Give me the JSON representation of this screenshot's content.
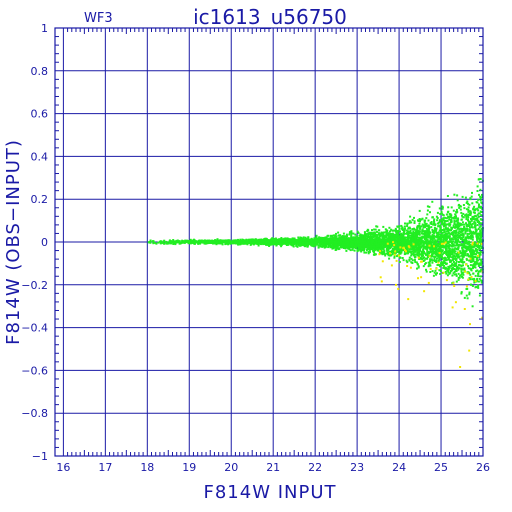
{
  "chart_data": {
    "type": "scatter",
    "title": "ic1613_u56750",
    "corner_label": "WF3",
    "xlabel": "F814W INPUT",
    "ylabel": "F814W (OBS−INPUT)",
    "xlim": [
      15.8,
      26
    ],
    "ylim": [
      -1,
      1
    ],
    "x_ticks": [
      16,
      17,
      18,
      19,
      20,
      21,
      22,
      23,
      24,
      25,
      26
    ],
    "y_ticks": [
      -1,
      -0.8,
      -0.6,
      -0.4,
      -0.2,
      0,
      0.2,
      0.4,
      0.6,
      0.8,
      1
    ],
    "x_tick_labels": [
      "16",
      "17",
      "18",
      "19",
      "20",
      "21",
      "22",
      "23",
      "24",
      "25",
      "26"
    ],
    "y_tick_labels": [
      "−1",
      "−0.8",
      "−0.6",
      "−0.4",
      "−0.2",
      "0",
      "0.2",
      "0.4",
      "0.6",
      "0.8",
      "1"
    ],
    "grid": true,
    "colors": {
      "axis": "#1a1aa6",
      "grid": "#1a1aa6",
      "main_points": "#22ee22",
      "outlier_points": "#f2e600"
    },
    "series": [
      {
        "color": "#22ee22",
        "x_range": [
          18,
          26
        ],
        "y_center": 0,
        "spread_at_x": [
          {
            "x": 18,
            "spread": 0.01
          },
          {
            "x": 20,
            "spread": 0.012
          },
          {
            "x": 22,
            "spread": 0.025
          },
          {
            "x": 23,
            "spread": 0.05
          },
          {
            "x": 24,
            "spread": 0.09
          },
          {
            "x": 25,
            "spread": 0.18
          },
          {
            "x": 26,
            "spread": 0.35
          }
        ]
      },
      {
        "color": "#f2e600",
        "x_range": [
          23.5,
          26
        ],
        "y_center": 0,
        "spread_at_x": [
          {
            "x": 23.5,
            "spread": 0.2
          },
          {
            "x": 26,
            "spread": 0.8
          }
        ]
      }
    ],
    "zero_line": {
      "x_range": [
        15.8,
        18
      ],
      "y": 0
    }
  }
}
